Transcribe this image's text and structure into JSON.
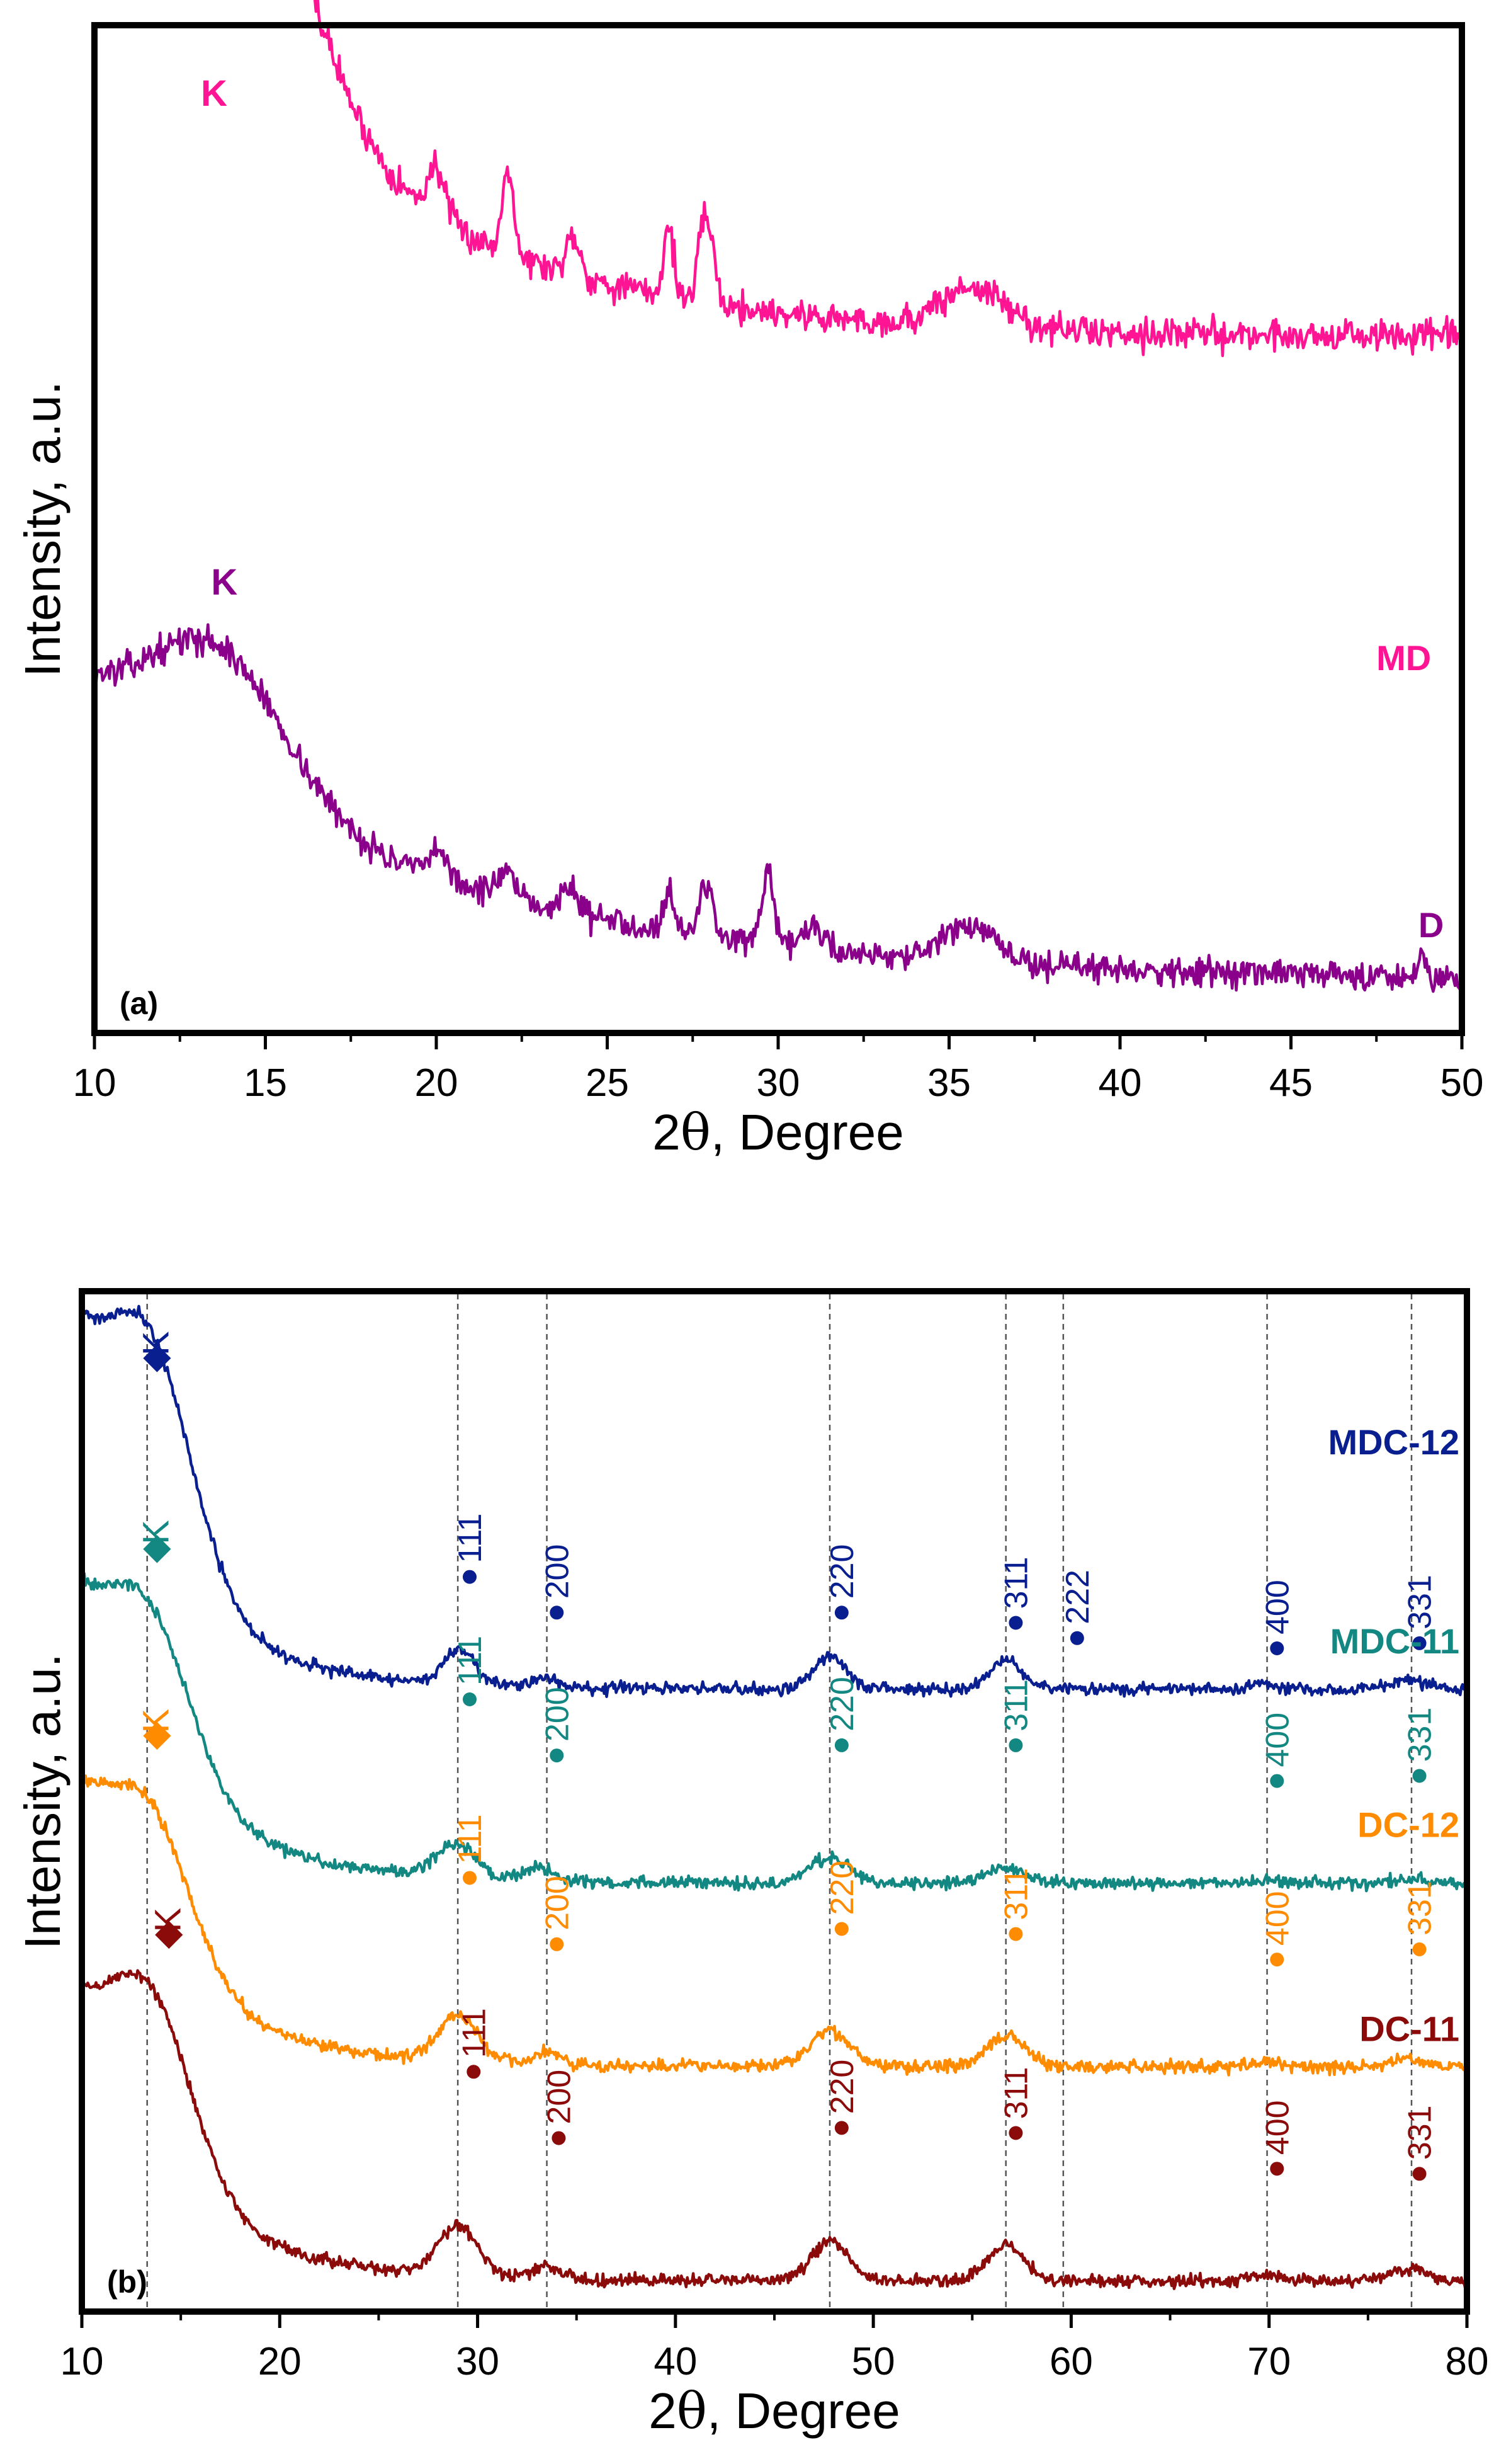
{
  "chart_data": [
    {
      "type": "line",
      "panel_label": "(a)",
      "xlabel_prefix": "2",
      "xlabel_symbol": "θ",
      "xlabel_suffix": ", Degree",
      "ylabel": "Intensity, a.u.",
      "xlim": [
        10,
        50
      ],
      "ylim": [
        0,
        100
      ],
      "xticks": [
        10,
        15,
        20,
        25,
        30,
        35,
        40,
        45,
        50
      ],
      "series": [
        {
          "name": "MD",
          "color": "#FF1493",
          "baseline": 69,
          "decay": {
            "amp": 54,
            "tau": 6.5
          },
          "noise": 1.6,
          "seed": 7,
          "peaks": [
            {
              "x": 13.6,
              "h": 31,
              "w": 2.2
            },
            {
              "x": 20.0,
              "h": 5,
              "w": 0.25
            },
            {
              "x": 22.1,
              "h": 9,
              "w": 0.16
            },
            {
              "x": 24.0,
              "h": 4,
              "w": 0.2
            },
            {
              "x": 26.8,
              "h": 7,
              "w": 0.15
            },
            {
              "x": 27.9,
              "h": 9,
              "w": 0.2
            },
            {
              "x": 35.7,
              "h": 4,
              "w": 0.9
            }
          ],
          "annotations": [
            {
              "text": "K",
              "x": 13.5,
              "y": 92
            },
            {
              "text": "MD",
              "x": 48.3,
              "y": 36
            }
          ]
        },
        {
          "name": "D",
          "color": "#8B008B",
          "baseline": 5,
          "decay": {
            "amp": 28,
            "tau": 10
          },
          "noise": 1.4,
          "seed": 13,
          "peaks": [
            {
              "x": 13.6,
              "h": 14,
              "w": 2.0
            },
            {
              "x": 20.1,
              "h": 2.5,
              "w": 0.3
            },
            {
              "x": 22.0,
              "h": 2.5,
              "w": 0.25
            },
            {
              "x": 23.9,
              "h": 2.5,
              "w": 0.25
            },
            {
              "x": 26.8,
              "h": 4,
              "w": 0.15
            },
            {
              "x": 27.9,
              "h": 5,
              "w": 0.2
            },
            {
              "x": 29.7,
              "h": 7,
              "w": 0.15
            },
            {
              "x": 31.0,
              "h": 2,
              "w": 0.3
            },
            {
              "x": 35.6,
              "h": 3.5,
              "w": 0.7
            },
            {
              "x": 48.8,
              "h": 2.5,
              "w": 0.12
            }
          ],
          "annotations": [
            {
              "text": "K",
              "x": 13.8,
              "y": 43.5
            },
            {
              "text": "D",
              "x": 49.1,
              "y": 9.5
            }
          ]
        }
      ]
    },
    {
      "type": "line",
      "panel_label": "(b)",
      "xlabel_prefix": "2",
      "xlabel_symbol": "θ",
      "xlabel_suffix": ", Degree",
      "ylabel": "Intensity, a.u.",
      "xlim": [
        10,
        80
      ],
      "ylim": [
        0,
        100
      ],
      "xticks": [
        10,
        20,
        30,
        40,
        50,
        60,
        70,
        80
      ],
      "reference_lines": [
        13.3,
        29.0,
        33.5,
        47.8,
        56.7,
        59.6,
        69.9,
        77.2
      ],
      "series": [
        {
          "name": "MDC-12",
          "color": "#0A1F8F",
          "baseline": 61,
          "decay": {
            "amp": 31,
            "tau": 4.5
          },
          "noise": 0.6,
          "seed": 21,
          "peaks": [
            {
              "x": 13.4,
              "h": 21,
              "w": 2.2
            },
            {
              "x": 29.1,
              "h": 3.5,
              "w": 0.8
            },
            {
              "x": 33.4,
              "h": 1,
              "w": 0.6
            },
            {
              "x": 47.8,
              "h": 3.3,
              "w": 0.8
            },
            {
              "x": 56.7,
              "h": 2.8,
              "w": 0.8
            },
            {
              "x": 69.8,
              "h": 0.5,
              "w": 0.6
            },
            {
              "x": 77.0,
              "h": 0.8,
              "w": 0.8
            }
          ],
          "label": "MDC-12",
          "label_y": 84,
          "marker_symbol": "◆",
          "k_label": {
            "text": "K",
            "x": 13.8,
            "y": 96,
            "marker_y": 92.5
          },
          "hkl": [
            {
              "text": "111",
              "x": 29.6,
              "y": 72
            },
            {
              "text": "200",
              "x": 34.0,
              "y": 68.5
            },
            {
              "text": "220",
              "x": 48.4,
              "y": 68.5
            },
            {
              "text": "311",
              "x": 57.2,
              "y": 67.5
            },
            {
              "text": "222",
              "x": 60.3,
              "y": 66
            },
            {
              "text": "400",
              "x": 70.4,
              "y": 65
            },
            {
              "text": "331",
              "x": 77.6,
              "y": 65.5
            }
          ]
        },
        {
          "name": "MDC-11",
          "color": "#138781",
          "baseline": 42,
          "decay": {
            "amp": 25,
            "tau": 5
          },
          "noise": 0.6,
          "seed": 34,
          "peaks": [
            {
              "x": 13.3,
              "h": 15,
              "w": 2.2
            },
            {
              "x": 28.9,
              "h": 3.2,
              "w": 1.0
            },
            {
              "x": 33.1,
              "h": 1.2,
              "w": 0.8
            },
            {
              "x": 47.8,
              "h": 2.5,
              "w": 1.0
            },
            {
              "x": 56.6,
              "h": 1.5,
              "w": 1.0
            },
            {
              "x": 70.0,
              "h": 0.3,
              "w": 0.6
            },
            {
              "x": 77.0,
              "h": 0.4,
              "w": 0.8
            }
          ],
          "label": "MDC-11",
          "label_y": 64.5,
          "marker_symbol": "◆",
          "k_label": {
            "text": "K",
            "x": 13.8,
            "y": 77.5,
            "marker_y": 73.8
          },
          "hkl": [
            {
              "text": "111",
              "x": 29.6,
              "y": 60
            },
            {
              "text": "200",
              "x": 34.0,
              "y": 54.5
            },
            {
              "text": "220",
              "x": 48.4,
              "y": 55.5
            },
            {
              "text": "311",
              "x": 57.2,
              "y": 55.5
            },
            {
              "text": "400",
              "x": 70.4,
              "y": 52
            },
            {
              "text": "331",
              "x": 77.6,
              "y": 52.5
            }
          ]
        },
        {
          "name": "DC-12",
          "color": "#FF8C00",
          "baseline": 24,
          "decay": {
            "amp": 24,
            "tau": 5
          },
          "noise": 0.6,
          "seed": 55,
          "peaks": [
            {
              "x": 13.3,
              "h": 14,
              "w": 2.2
            },
            {
              "x": 29.0,
              "h": 4.5,
              "w": 1.0
            },
            {
              "x": 33.5,
              "h": 1.2,
              "w": 0.6
            },
            {
              "x": 47.8,
              "h": 3.5,
              "w": 1.0
            },
            {
              "x": 56.7,
              "h": 3,
              "w": 1.0
            },
            {
              "x": 70.0,
              "h": 0.5,
              "w": 0.8
            },
            {
              "x": 77.0,
              "h": 0.8,
              "w": 0.8
            }
          ],
          "label": "DC-12",
          "label_y": 46.5,
          "marker_symbol": "◆",
          "k_label": {
            "text": "K",
            "x": 13.8,
            "y": 59,
            "marker_y": 55.5
          },
          "hkl": [
            {
              "text": "111",
              "x": 29.6,
              "y": 42.5
            },
            {
              "text": "200",
              "x": 34.0,
              "y": 36
            },
            {
              "text": "220",
              "x": 48.4,
              "y": 37.5
            },
            {
              "text": "311",
              "x": 57.2,
              "y": 37
            },
            {
              "text": "400",
              "x": 70.4,
              "y": 34.5
            },
            {
              "text": "331",
              "x": 77.6,
              "y": 35.5
            }
          ]
        },
        {
          "name": "DC-11",
          "color": "#8B0A0A",
          "baseline": 3,
          "decay": {
            "amp": 24,
            "tau": 5
          },
          "noise": 0.6,
          "seed": 89,
          "peaks": [
            {
              "x": 13.4,
              "h": 17,
              "w": 2.2
            },
            {
              "x": 29.0,
              "h": 5,
              "w": 1.0
            },
            {
              "x": 33.5,
              "h": 1.2,
              "w": 0.7
            },
            {
              "x": 47.8,
              "h": 4,
              "w": 0.9
            },
            {
              "x": 56.7,
              "h": 3.5,
              "w": 0.9
            },
            {
              "x": 69.9,
              "h": 0.6,
              "w": 0.8
            },
            {
              "x": 77.0,
              "h": 1.3,
              "w": 0.9
            }
          ],
          "label": "DC-11",
          "label_y": 26.5,
          "marker_symbol": "◆",
          "k_label": {
            "text": "K",
            "x": 14.4,
            "y": 39.5,
            "marker_y": 36
          },
          "hkl": [
            {
              "text": "111",
              "x": 29.8,
              "y": 23.5
            },
            {
              "text": "200",
              "x": 34.1,
              "y": 17
            },
            {
              "text": "220",
              "x": 48.4,
              "y": 18
            },
            {
              "text": "311",
              "x": 57.2,
              "y": 17.5
            },
            {
              "text": "400",
              "x": 70.4,
              "y": 14
            },
            {
              "text": "331",
              "x": 77.6,
              "y": 13.5
            }
          ]
        }
      ]
    }
  ]
}
